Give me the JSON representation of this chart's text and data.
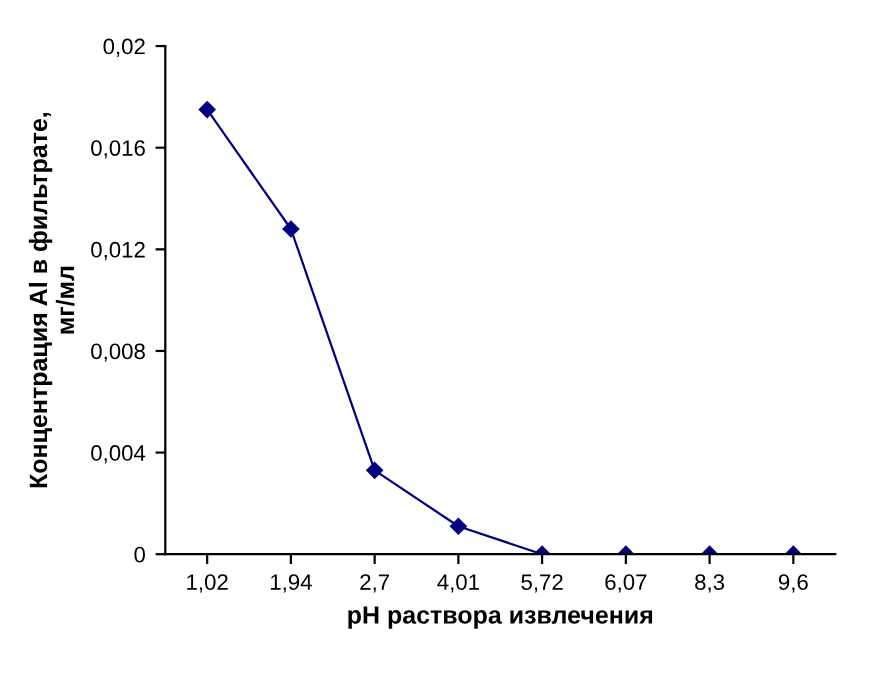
{
  "chart_data": {
    "type": "line",
    "xlabel": "pH раствора извлечения",
    "ylabel": "Концентрация Al в фильтрате,\nмг/мл",
    "categories": [
      "1,02",
      "1,94",
      "2,7",
      "4,01",
      "5,72",
      "6,07",
      "8,3",
      "9,6"
    ],
    "series": [
      {
        "color": "#000080",
        "values": [
          0.0175,
          0.0128,
          0.0033,
          0.0011,
          0,
          0,
          0,
          0
        ]
      }
    ],
    "ylim": [
      0,
      0.02
    ],
    "yticks": [
      {
        "value": 0,
        "label": "0"
      },
      {
        "value": 0.004,
        "label": "0,004"
      },
      {
        "value": 0.008,
        "label": "0,008"
      },
      {
        "value": 0.012,
        "label": "0,012"
      },
      {
        "value": 0.016,
        "label": "0,016"
      },
      {
        "value": 0.02,
        "label": "0,02"
      }
    ],
    "marker": "diamond",
    "line_style": "solid",
    "grid": false,
    "legend": false
  }
}
